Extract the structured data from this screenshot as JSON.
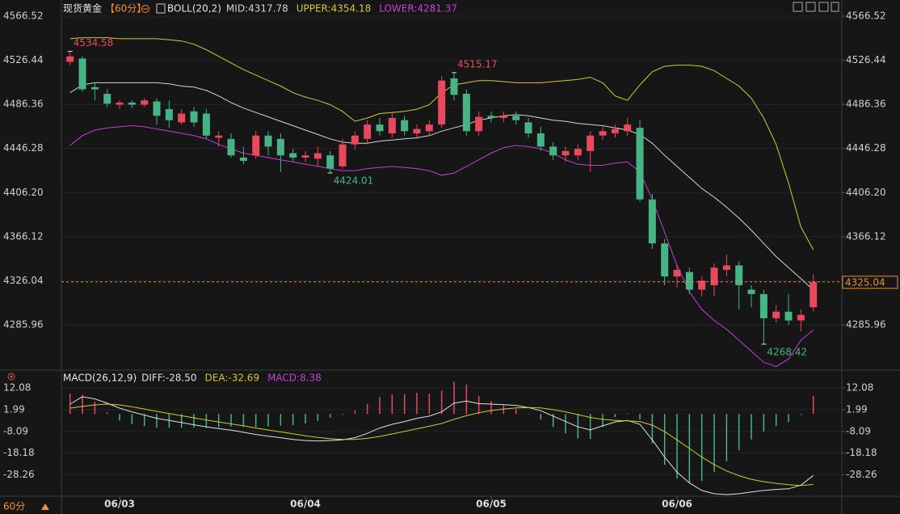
{
  "chart_data": [
    {
      "type": "candlestick",
      "title": "现货黄金",
      "period": "【60分】",
      "indicator": "BOLL(20,2)",
      "categories": [
        null,
        null,
        null,
        null,
        "06/03",
        null,
        null,
        null,
        null,
        null,
        null,
        null,
        null,
        null,
        null,
        null,
        null,
        null,
        null,
        "06/04",
        null,
        null,
        null,
        null,
        null,
        null,
        null,
        null,
        null,
        null,
        null,
        null,
        null,
        null,
        "06/05",
        null,
        null,
        null,
        null,
        null,
        null,
        null,
        null,
        null,
        null,
        null,
        null,
        null,
        null,
        "06/06",
        null,
        null,
        null,
        null,
        null,
        null,
        null,
        null,
        null,
        null,
        null
      ],
      "open": [
        4525,
        4528,
        4502,
        4496,
        4486,
        4488,
        4486,
        4489,
        4482,
        4470,
        4480,
        4478,
        4456,
        4455,
        4438,
        4440,
        4458,
        4455,
        4442,
        4438,
        4437,
        4440,
        4430,
        4450,
        4455,
        4468,
        4460,
        4472,
        4460,
        4462,
        4468,
        4510,
        4496,
        4462,
        4476,
        4474,
        4476,
        4470,
        4460,
        4448,
        4440,
        4440,
        4444,
        4458,
        4460,
        4462,
        4465,
        4400,
        4360,
        4330,
        4334,
        4318,
        4322,
        4336,
        4340,
        4318,
        4314,
        4292,
        4298,
        4290,
        4302
      ],
      "high": [
        4534.58,
        4530,
        4506,
        4500,
        4490,
        4490,
        4492,
        4492,
        4490,
        4482,
        4484,
        4482,
        4462,
        4460,
        4448,
        4462,
        4462,
        4460,
        4446,
        4444,
        4448,
        4444,
        4455,
        4462,
        4472,
        4474,
        4480,
        4476,
        4468,
        4472,
        4512,
        4515.17,
        4500,
        4480,
        4480,
        4480,
        4480,
        4474,
        4466,
        4452,
        4448,
        4450,
        4462,
        4466,
        4468,
        4474,
        4472,
        4405,
        4364,
        4340,
        4338,
        4330,
        4342,
        4350,
        4344,
        4322,
        4318,
        4304,
        4314,
        4300,
        4332
      ],
      "low": [
        4522,
        4498,
        4490,
        4484,
        4482,
        4483,
        4484,
        4468,
        4465,
        4468,
        4466,
        4455,
        4448,
        4438,
        4432,
        4437,
        4440,
        4425,
        4434,
        4434,
        4430,
        4424.01,
        4428,
        4445,
        4450,
        4458,
        4456,
        4458,
        4455,
        4458,
        4465,
        4490,
        4458,
        4458,
        4470,
        4470,
        4468,
        4456,
        4444,
        4436,
        4434,
        4436,
        4425,
        4454,
        4456,
        4458,
        4398,
        4355,
        4322,
        4320,
        4314,
        4312,
        4312,
        4330,
        4300,
        4302,
        4268.42,
        4288,
        4286,
        4280,
        4298
      ],
      "close": [
        4530,
        4500,
        4500,
        4487,
        4488,
        4486,
        4490,
        4476,
        4472,
        4478,
        4470,
        4458,
        4458,
        4440,
        4435,
        4458,
        4448,
        4440,
        4438,
        4440,
        4442,
        4428,
        4450,
        4458,
        4468,
        4462,
        4474,
        4462,
        4464,
        4468,
        4508,
        4495,
        4462,
        4475,
        4474,
        4476,
        4472,
        4460,
        4448,
        4440,
        4444,
        4446,
        4458,
        4462,
        4464,
        4468,
        4400,
        4360,
        4330,
        4336,
        4318,
        4326,
        4338,
        4340,
        4322,
        4314,
        4292,
        4298,
        4290,
        4295,
        4325.04
      ],
      "up_color": "#e8495f",
      "down_color": "#46b485",
      "series": [
        {
          "name": "MID:4317.78",
          "color": "#d4d4d4",
          "values": [
            4497,
            4504,
            4506,
            4506,
            4506,
            4506,
            4506,
            4506,
            4505,
            4503,
            4502,
            4499,
            4494,
            4488,
            4483,
            4479,
            4475,
            4471,
            4467,
            4463,
            4459,
            4455,
            4452,
            4451,
            4451,
            4453,
            4454,
            4455,
            4456,
            4458,
            4462,
            4465,
            4468,
            4472,
            4474,
            4476,
            4477,
            4476,
            4474,
            4472,
            4471,
            4469,
            4468,
            4467,
            4465,
            4463,
            4459,
            4451,
            4440,
            4430,
            4420,
            4410,
            4402,
            4393,
            4383,
            4372,
            4360,
            4348,
            4338,
            4328,
            4317.78
          ]
        },
        {
          "name": "UPPER:4354.18",
          "color": "#d6c928",
          "values": [
            4546,
            4547,
            4547,
            4547,
            4546,
            4546,
            4546,
            4546,
            4545,
            4544,
            4541,
            4536,
            4530,
            4524,
            4518,
            4513,
            4508,
            4503,
            4497,
            4493,
            4490,
            4486,
            4480,
            4471,
            4474,
            4478,
            4479,
            4480,
            4482,
            4486,
            4497,
            4504,
            4506,
            4508,
            4508,
            4507,
            4506,
            4506,
            4506,
            4507,
            4508,
            4509,
            4511,
            4506,
            4494,
            4490,
            4504,
            4516,
            4521,
            4522,
            4522,
            4521,
            4517,
            4510,
            4503,
            4492,
            4474,
            4450,
            4415,
            4375,
            4354.18
          ]
        },
        {
          "name": "LOWER:4281.37",
          "color": "#c53fd6",
          "values": [
            4449,
            4458,
            4463,
            4465,
            4466,
            4467,
            4466,
            4464,
            4462,
            4460,
            4458,
            4455,
            4450,
            4446,
            4442,
            4440,
            4438,
            4436,
            4434,
            4432,
            4430,
            4428,
            4426,
            4426,
            4428,
            4429,
            4430,
            4429,
            4428,
            4426,
            4422,
            4424,
            4430,
            4436,
            4442,
            4447,
            4449,
            4448,
            4446,
            4442,
            4436,
            4432,
            4431,
            4431,
            4433,
            4434,
            4425,
            4400,
            4370,
            4340,
            4316,
            4300,
            4290,
            4282,
            4272,
            4262,
            4252,
            4248,
            4255,
            4272,
            4281.37
          ]
        }
      ],
      "extreme_labels": [
        4534.58,
        4515.17,
        4424.01,
        4268.42
      ],
      "last_price": 4325.04,
      "last_price_color": "#f0902a",
      "ylim": [
        4243,
        4566.52
      ],
      "yticks": [
        4566.52,
        4526.44,
        4486.36,
        4446.28,
        {
          "value": 4406.2,
          "label": "4406.20"
        },
        4366.12,
        4326.04,
        4285.96
      ],
      "grid": true
    },
    {
      "type": "macd",
      "indicator": "MACD(26,12,9)",
      "series": [
        {
          "name": "DIFF:-28.50",
          "color": "#e0e0e0",
          "values": [
            4.6,
            8.0,
            7.0,
            5.0,
            2.7,
            1.0,
            -0.5,
            -2.0,
            -3.0,
            -4.0,
            -5.0,
            -6.0,
            -6.8,
            -7.5,
            -8.5,
            -9.5,
            -10.3,
            -11.0,
            -11.8,
            -12.3,
            -12.5,
            -12.3,
            -12.0,
            -11.0,
            -9.0,
            -6.5,
            -4.8,
            -3.5,
            -2.0,
            -1.0,
            1.0,
            5.0,
            6.0,
            4.8,
            4.6,
            4.3,
            4.0,
            3.0,
            1.5,
            -1.0,
            -3.5,
            -6.0,
            -7.4,
            -5.5,
            -3.7,
            -3.0,
            -4.8,
            -12.0,
            -20.0,
            -27.0,
            -32.0,
            -35.5,
            -37.0,
            -37.4,
            -37.0,
            -36.2,
            -35.5,
            -35.0,
            -34.7,
            -33.0,
            -28.5
          ]
        },
        {
          "name": "DEA:-32.69",
          "color": "#d6c928",
          "values": [
            2.7,
            3.5,
            4.2,
            4.6,
            4.2,
            3.3,
            2.3,
            1.2,
            0.2,
            -0.8,
            -1.8,
            -2.8,
            -3.7,
            -4.6,
            -5.5,
            -6.5,
            -7.4,
            -8.3,
            -9.2,
            -10.1,
            -10.9,
            -11.5,
            -11.8,
            -11.8,
            -11.3,
            -10.4,
            -9.3,
            -8.1,
            -6.9,
            -5.7,
            -4.4,
            -2.5,
            -0.8,
            0.6,
            1.6,
            2.3,
            2.8,
            3.0,
            2.8,
            2.0,
            1.0,
            -0.3,
            -1.6,
            -2.5,
            -3.0,
            -3.2,
            -3.5,
            -5.2,
            -8.2,
            -12.0,
            -16.0,
            -20.0,
            -23.5,
            -26.4,
            -28.6,
            -30.3,
            -31.4,
            -32.2,
            -32.8,
            -33.2,
            -32.69
          ]
        }
      ],
      "histogram": {
        "name": "MACD:8.38",
        "color": "#c53fd6",
        "values": [
          9.4,
          9.0,
          5.6,
          0.8,
          -3.0,
          -4.6,
          -5.6,
          -6.4,
          -6.4,
          -6.4,
          -6.4,
          -6.4,
          -6.2,
          -5.8,
          -6.0,
          -6.0,
          -5.8,
          -5.4,
          -5.2,
          -4.4,
          -3.2,
          -1.6,
          -0.4,
          1.6,
          4.6,
          7.8,
          9.0,
          9.2,
          9.8,
          9.4,
          10.8,
          15.0,
          13.6,
          8.4,
          6.0,
          4.0,
          2.4,
          0.0,
          -2.6,
          -6.0,
          -9.0,
          -11.4,
          -11.6,
          -6.0,
          -1.4,
          0.4,
          -2.6,
          -13.6,
          -23.6,
          -30.0,
          -32.0,
          -31.0,
          -27.0,
          -22.0,
          -16.8,
          -11.8,
          -8.2,
          -5.6,
          -3.8,
          -0.4,
          8.38
        ]
      },
      "up_color": "#e8495f",
      "down_color": "#46b485",
      "ylim": [
        -38,
        14
      ],
      "yticks": [
        12.08,
        1.99,
        -8.09,
        -18.18,
        -28.26
      ],
      "grid": true
    }
  ],
  "period_button": "60分"
}
